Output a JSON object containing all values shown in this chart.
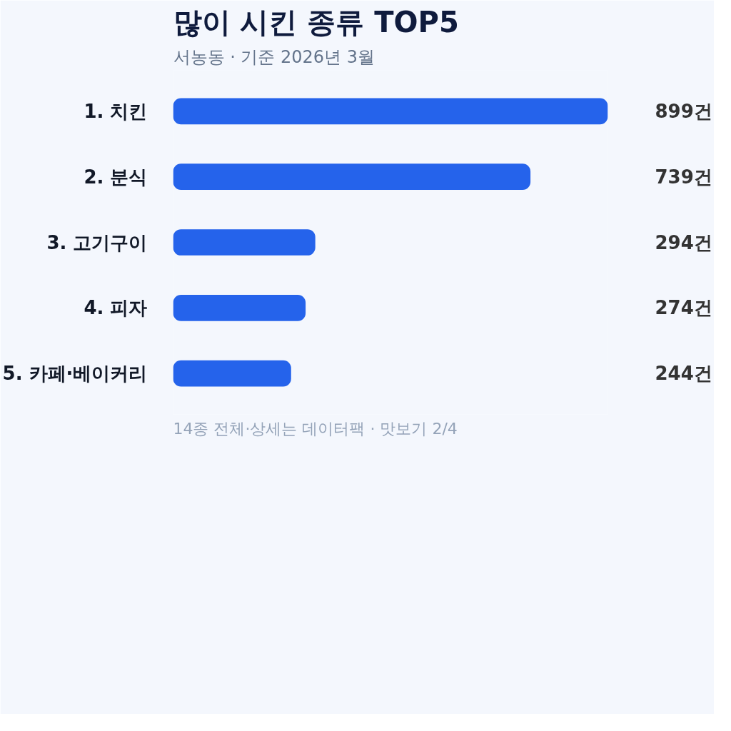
{
  "chart_data": {
    "type": "bar",
    "orientation": "horizontal",
    "title": "많이 시킨 종류 TOP5",
    "subtitle": "서농동 · 기준 2026년 3월",
    "categories": [
      "1. 치킨",
      "2. 분식",
      "3. 고기구이",
      "4. 피자",
      "5. 카페·베이커리"
    ],
    "values": [
      899,
      739,
      294,
      274,
      244
    ],
    "color": "#2563eb",
    "value_labels": [
      "899건",
      "739건",
      "294건",
      "274건",
      "244건"
    ],
    "xlim": [
      0,
      899
    ],
    "grid": false,
    "annotations": [
      "14종 전체·상세는 데이터팩 · 맛보기 2/4"
    ]
  }
}
